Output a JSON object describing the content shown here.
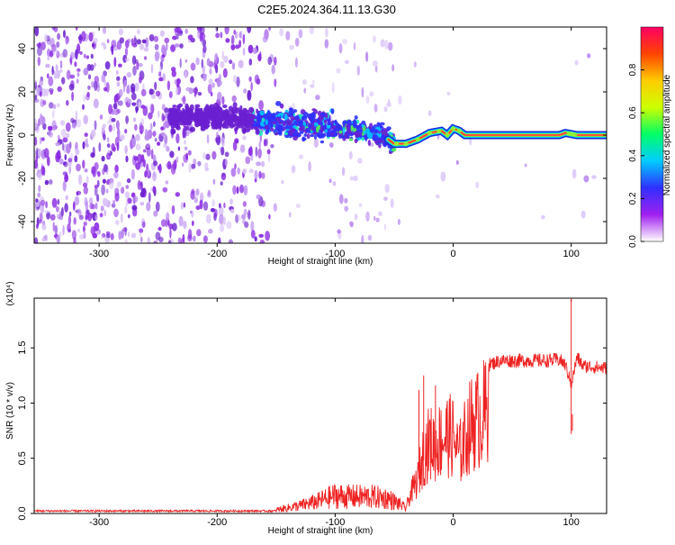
{
  "title": "C2E5.2024.364.11.13.G30",
  "chart_data": [
    {
      "type": "heatmap",
      "xlabel": "Height of straight line (km)",
      "ylabel": "Frequency (Hz)",
      "xlim": [
        -355,
        130
      ],
      "ylim": [
        -50,
        50
      ],
      "xticks": [
        -300,
        -200,
        -100,
        0,
        100
      ],
      "yticks": [
        -40,
        -20,
        0,
        20,
        40
      ],
      "colorbar": {
        "label": "Normalized spectral amplitude",
        "range": [
          0,
          1
        ],
        "ticks": [
          "0.0",
          "0.2",
          "0.4",
          "0.6",
          "0.8"
        ],
        "colors": [
          "#ffffff",
          "#a020f0",
          "#3030ff",
          "#00ccff",
          "#00ff66",
          "#ccff00",
          "#ffcc00",
          "#ff4400",
          "#ff0066"
        ]
      },
      "ridge": {
        "x": [
          -230,
          -180,
          -150,
          -120,
          -100,
          -80,
          -60,
          -50,
          -40,
          -30,
          -20,
          -10,
          -5,
          0,
          5,
          10,
          30,
          60,
          90,
          95,
          100,
          105,
          130
        ],
        "y": [
          8,
          8,
          6,
          5,
          4,
          2,
          0,
          -4,
          -4,
          -2,
          1,
          2,
          0,
          3,
          2,
          0,
          0,
          0,
          0,
          1,
          0.5,
          0,
          0
        ]
      }
    },
    {
      "type": "line",
      "xlabel": "Height of straight line (km)",
      "ylabel": "SNR (10 * v/v)",
      "y_multiplier": "(x10⁴)",
      "xlim": [
        -355,
        130
      ],
      "ylim": [
        0,
        1.95
      ],
      "xticks": [
        -300,
        -200,
        -100,
        0,
        100
      ],
      "yticks": [
        "0.0",
        "0.5",
        "1.0",
        "1.5"
      ],
      "color": "#ee2222",
      "envelope": {
        "x": [
          -355,
          -250,
          -200,
          -170,
          -150,
          -130,
          -115,
          -100,
          -90,
          -70,
          -55,
          -45,
          -40,
          -35,
          -30,
          -25,
          -20,
          -15,
          -10,
          -5,
          0,
          5,
          10,
          15,
          20,
          25,
          30,
          40,
          60,
          80,
          90,
          95,
          100,
          105,
          110,
          120,
          130
        ],
        "y": [
          0.01,
          0.02,
          0.03,
          0.04,
          0.06,
          0.13,
          0.2,
          0.3,
          0.28,
          0.28,
          0.25,
          0.15,
          0.08,
          0.3,
          0.45,
          0.8,
          0.95,
          0.9,
          1.0,
          1.05,
          1.02,
          0.78,
          1.0,
          1.2,
          1.25,
          1.33,
          1.38,
          1.42,
          1.42,
          1.42,
          1.43,
          1.38,
          1.2,
          1.45,
          1.37,
          1.36,
          1.35
        ]
      },
      "spikes": [
        {
          "x": -29,
          "y": 1.12
        },
        {
          "x": -25,
          "y": 1.25
        },
        {
          "x": -15,
          "y": 1.16
        },
        {
          "x": 12,
          "y": 0.45
        },
        {
          "x": 100,
          "y": 1.95
        },
        {
          "x": 101,
          "y": 0.9
        }
      ]
    }
  ]
}
